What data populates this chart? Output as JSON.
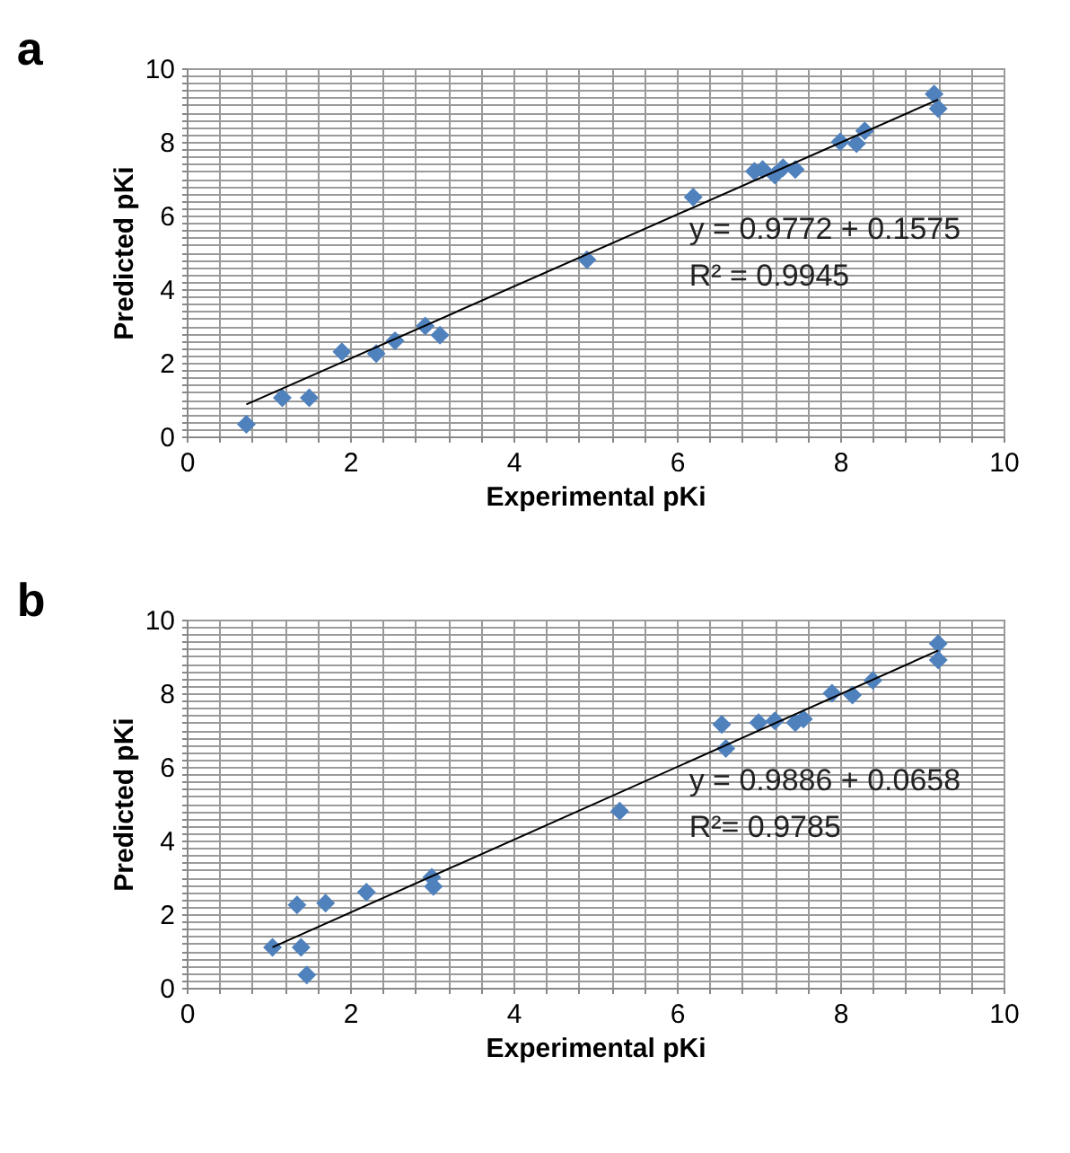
{
  "chart_data": [
    {
      "type": "scatter",
      "title": "a",
      "xlabel": "Experimental pKi",
      "ylabel": "Predicted pKi",
      "grid": true,
      "xlim": [
        0,
        10
      ],
      "ylim": [
        0,
        10
      ],
      "xticks": [
        0,
        {
          "value": 0.4,
          "label": null
        },
        {
          "value": 0.8,
          "label": null
        },
        {
          "value": 1.2,
          "label": null
        },
        {
          "value": 1.6,
          "label": null
        },
        2,
        {
          "value": 2.4,
          "label": null
        },
        {
          "value": 2.8,
          "label": null
        },
        {
          "value": 3.2,
          "label": null
        },
        {
          "value": 3.6,
          "label": null
        },
        4,
        {
          "value": 4.4,
          "label": null
        },
        {
          "value": 4.8,
          "label": null
        },
        {
          "value": 5.2,
          "label": null
        },
        {
          "value": 5.6,
          "label": null
        },
        6,
        {
          "value": 6.4,
          "label": null
        },
        {
          "value": 6.8,
          "label": null
        },
        {
          "value": 7.2,
          "label": null
        },
        {
          "value": 7.6,
          "label": null
        },
        8,
        {
          "value": 8.4,
          "label": null
        },
        {
          "value": 8.8,
          "label": null
        },
        {
          "value": 9.2,
          "label": null
        },
        {
          "value": 9.6,
          "label": null
        },
        10
      ],
      "yticks": [
        0,
        {
          "value": 0.2,
          "label": null
        },
        {
          "value": 0.4,
          "label": null
        },
        {
          "value": 0.6,
          "label": null
        },
        {
          "value": 0.8,
          "label": null
        },
        {
          "value": 1,
          "label": null
        },
        {
          "value": 1.2,
          "label": null
        },
        {
          "value": 1.4,
          "label": null
        },
        {
          "value": 1.6,
          "label": null
        },
        {
          "value": 1.8,
          "label": null
        },
        2,
        {
          "value": 2.2,
          "label": null
        },
        {
          "value": 2.4,
          "label": null
        },
        {
          "value": 2.6,
          "label": null
        },
        {
          "value": 2.8,
          "label": null
        },
        {
          "value": 3,
          "label": null
        },
        {
          "value": 3.2,
          "label": null
        },
        {
          "value": 3.4,
          "label": null
        },
        {
          "value": 3.6,
          "label": null
        },
        {
          "value": 3.8,
          "label": null
        },
        4,
        {
          "value": 4.2,
          "label": null
        },
        {
          "value": 4.4,
          "label": null
        },
        {
          "value": 4.6,
          "label": null
        },
        {
          "value": 4.8,
          "label": null
        },
        {
          "value": 5,
          "label": null
        },
        {
          "value": 5.2,
          "label": null
        },
        {
          "value": 5.4,
          "label": null
        },
        {
          "value": 5.6,
          "label": null
        },
        {
          "value": 5.8,
          "label": null
        },
        6,
        {
          "value": 6.2,
          "label": null
        },
        {
          "value": 6.4,
          "label": null
        },
        {
          "value": 6.6,
          "label": null
        },
        {
          "value": 6.8,
          "label": null
        },
        {
          "value": 7,
          "label": null
        },
        {
          "value": 7.2,
          "label": null
        },
        {
          "value": 7.4,
          "label": null
        },
        {
          "value": 7.6,
          "label": null
        },
        {
          "value": 7.8,
          "label": null
        },
        8,
        {
          "value": 8.2,
          "label": null
        },
        {
          "value": 8.4,
          "label": null
        },
        {
          "value": 8.6,
          "label": null
        },
        {
          "value": 8.8,
          "label": null
        },
        {
          "value": 9,
          "label": null
        },
        {
          "value": 9.2,
          "label": null
        },
        {
          "value": 9.4,
          "label": null
        },
        {
          "value": 9.6,
          "label": null
        },
        {
          "value": 9.8,
          "label": null
        },
        10
      ],
      "annotations": [
        "y = 0.9772 + 0.1575",
        "R² = 0.9945"
      ],
      "series": [
        {
          "type": "scatter",
          "marker": "diamond",
          "color": "#4f81bd",
          "x": [
            0.73,
            1.17,
            1.5,
            1.9,
            2.32,
            2.55,
            2.92,
            3.1,
            4.9,
            6.2,
            6.95,
            7.05,
            7.2,
            7.3,
            7.45,
            8.0,
            8.2,
            8.3,
            9.15,
            9.2
          ],
          "values": [
            0.33,
            1.05,
            1.05,
            2.3,
            2.25,
            2.6,
            3.0,
            2.75,
            4.8,
            6.5,
            7.2,
            7.25,
            7.1,
            7.3,
            7.25,
            8.0,
            7.95,
            8.3,
            9.3,
            8.9
          ]
        },
        {
          "type": "line",
          "color": "#000000",
          "x": [
            0.73,
            9.2
          ],
          "values": [
            0.87,
            9.15
          ]
        }
      ]
    },
    {
      "type": "scatter",
      "title": "b",
      "xlabel": "Experimental pKi",
      "ylabel": "Predicted pKi",
      "grid": true,
      "xlim": [
        0,
        10
      ],
      "ylim": [
        0,
        10
      ],
      "xticks": [
        0,
        {
          "value": 0.4,
          "label": null
        },
        {
          "value": 0.8,
          "label": null
        },
        {
          "value": 1.2,
          "label": null
        },
        {
          "value": 1.6,
          "label": null
        },
        2,
        {
          "value": 2.4,
          "label": null
        },
        {
          "value": 2.8,
          "label": null
        },
        {
          "value": 3.2,
          "label": null
        },
        {
          "value": 3.6,
          "label": null
        },
        4,
        {
          "value": 4.4,
          "label": null
        },
        {
          "value": 4.8,
          "label": null
        },
        {
          "value": 5.2,
          "label": null
        },
        {
          "value": 5.6,
          "label": null
        },
        6,
        {
          "value": 6.4,
          "label": null
        },
        {
          "value": 6.8,
          "label": null
        },
        {
          "value": 7.2,
          "label": null
        },
        {
          "value": 7.6,
          "label": null
        },
        8,
        {
          "value": 8.4,
          "label": null
        },
        {
          "value": 8.8,
          "label": null
        },
        {
          "value": 9.2,
          "label": null
        },
        {
          "value": 9.6,
          "label": null
        },
        10
      ],
      "yticks": [
        0,
        {
          "value": 0.2,
          "label": null
        },
        {
          "value": 0.4,
          "label": null
        },
        {
          "value": 0.6,
          "label": null
        },
        {
          "value": 0.8,
          "label": null
        },
        {
          "value": 1,
          "label": null
        },
        {
          "value": 1.2,
          "label": null
        },
        {
          "value": 1.4,
          "label": null
        },
        {
          "value": 1.6,
          "label": null
        },
        {
          "value": 1.8,
          "label": null
        },
        2,
        {
          "value": 2.2,
          "label": null
        },
        {
          "value": 2.4,
          "label": null
        },
        {
          "value": 2.6,
          "label": null
        },
        {
          "value": 2.8,
          "label": null
        },
        {
          "value": 3,
          "label": null
        },
        {
          "value": 3.2,
          "label": null
        },
        {
          "value": 3.4,
          "label": null
        },
        {
          "value": 3.6,
          "label": null
        },
        {
          "value": 3.8,
          "label": null
        },
        4,
        {
          "value": 4.2,
          "label": null
        },
        {
          "value": 4.4,
          "label": null
        },
        {
          "value": 4.6,
          "label": null
        },
        {
          "value": 4.8,
          "label": null
        },
        {
          "value": 5,
          "label": null
        },
        {
          "value": 5.2,
          "label": null
        },
        {
          "value": 5.4,
          "label": null
        },
        {
          "value": 5.6,
          "label": null
        },
        {
          "value": 5.8,
          "label": null
        },
        6,
        {
          "value": 6.2,
          "label": null
        },
        {
          "value": 6.4,
          "label": null
        },
        {
          "value": 6.6,
          "label": null
        },
        {
          "value": 6.8,
          "label": null
        },
        {
          "value": 7,
          "label": null
        },
        {
          "value": 7.2,
          "label": null
        },
        {
          "value": 7.4,
          "label": null
        },
        {
          "value": 7.6,
          "label": null
        },
        {
          "value": 7.8,
          "label": null
        },
        8,
        {
          "value": 8.2,
          "label": null
        },
        {
          "value": 8.4,
          "label": null
        },
        {
          "value": 8.6,
          "label": null
        },
        {
          "value": 8.8,
          "label": null
        },
        {
          "value": 9,
          "label": null
        },
        {
          "value": 9.2,
          "label": null
        },
        {
          "value": 9.4,
          "label": null
        },
        {
          "value": 9.6,
          "label": null
        },
        {
          "value": 9.8,
          "label": null
        },
        10
      ],
      "annotations": [
        "y = 0.9886 + 0.0658",
        "R²= 0.9785"
      ],
      "series": [
        {
          "type": "scatter",
          "marker": "diamond",
          "color": "#4f81bd",
          "x": [
            1.05,
            1.35,
            1.4,
            1.47,
            1.7,
            2.2,
            3.0,
            3.02,
            5.3,
            6.55,
            6.6,
            7.0,
            7.2,
            7.45,
            7.55,
            7.9,
            8.15,
            8.4,
            9.2,
            9.2
          ],
          "values": [
            1.1,
            2.25,
            1.1,
            0.35,
            2.3,
            2.6,
            3.0,
            2.75,
            4.8,
            7.15,
            6.5,
            7.2,
            7.25,
            7.2,
            7.3,
            8.0,
            7.95,
            8.35,
            9.35,
            8.9
          ]
        },
        {
          "type": "line",
          "color": "#000000",
          "x": [
            1.05,
            9.2
          ],
          "values": [
            1.1,
            9.16
          ]
        }
      ]
    }
  ]
}
